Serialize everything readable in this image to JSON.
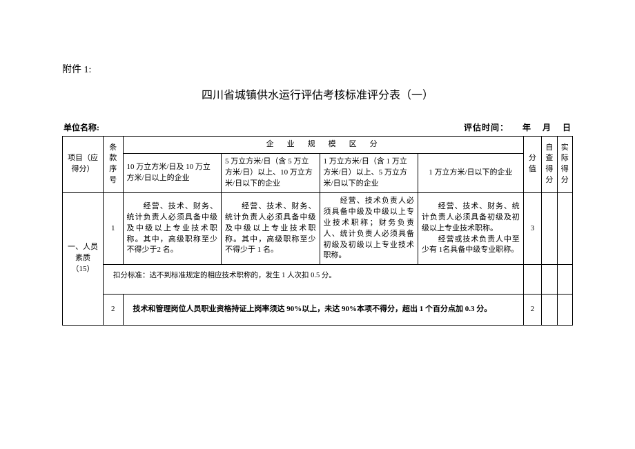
{
  "attachment_label": "附件 1:",
  "title": "四川省城镇供水运行评估考核标准评分表（一）",
  "header": {
    "unit_label": "单位名称:",
    "eval_time_label": "评估时间：",
    "year": "年",
    "month": "月",
    "day": "日"
  },
  "thead": {
    "item": "项目（应得分）",
    "clause_num": "条款序号",
    "scale_title": "企　业　规　模　区　分",
    "score": "分值",
    "self_score": "自查得分",
    "actual_score": "实际得分",
    "scales": [
      "10 万立方米/日及 10 万立方米/日以上的企业",
      "5 万立方米/日（含 5 万立方米/日）以上、10 万立方米/日以下的企业",
      "1 万立方米/日（含 1 万立方米/日）以上、5 万立方米/日以下的企业",
      "1 万立方米/日以下的企业"
    ]
  },
  "rows": {
    "category": "一、人员素质（15）",
    "r1": {
      "num": "1",
      "cells": [
        "　　经营、技术、财务、统计负责人必须具备中级及中级以上专业技术职称。其中，高级职称至少不得少于2 名。",
        "　　经营、技术、财务、统计负责人必须具备中级及中级以上专业技术职称。其中，高级职称至少不得少于 1 名。",
        "　　经营、技术负责人必须具备中级及中级以上专业技术职称；财务负责人、统计负责人必须具备初级及初级以上专业技术职称。",
        "　　经营、技术、财务、统计负责人必须具备初级及初级以上专业技术职称。\n　　经营或技术负责人中至少有 1名具备中级专业职称。"
      ],
      "score": "3"
    },
    "deduct": "扣分标准：达不到标准规定的相应技术职称的，发生 1 人次扣 0.5 分。",
    "r2": {
      "num": "2",
      "text": "技术和管理岗位人员职业资格持证上岗率须达 90%以上，未达 90%本项不得分，超出 1 个百分点加 0.3 分。",
      "score": "2"
    }
  }
}
